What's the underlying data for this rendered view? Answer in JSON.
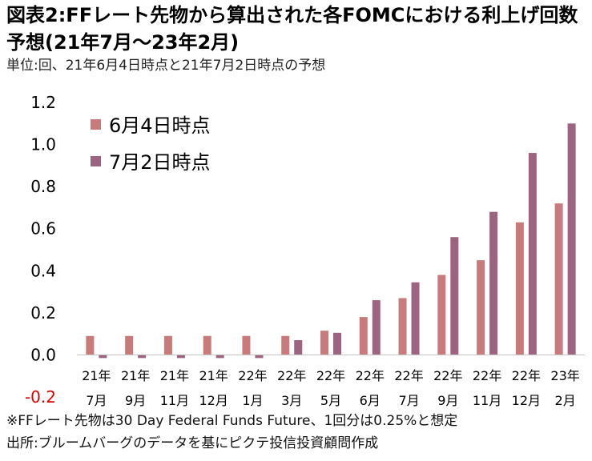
{
  "title": "図表2:FFレート先物から算出された各FOMCにおける利上げ回数予想(21年7月～23年2月)",
  "subtitle": "単位:回、21年6月4日時点と21年7月2日時点の予想",
  "notes": {
    "note": "※FFレート先物は30 Day Federal Funds Future、1回分は0.25%と想定",
    "source": "出所:ブルームバーグのデータを基にピクテ投信投資顧問作成"
  },
  "chart_data": {
    "type": "bar",
    "categories": [
      [
        "21年",
        "7月"
      ],
      [
        "21年",
        "9月"
      ],
      [
        "21年",
        "11月"
      ],
      [
        "21年",
        "12月"
      ],
      [
        "22年",
        "1月"
      ],
      [
        "22年",
        "3月"
      ],
      [
        "22年",
        "5月"
      ],
      [
        "22年",
        "6月"
      ],
      [
        "22年",
        "7月"
      ],
      [
        "22年",
        "9月"
      ],
      [
        "22年",
        "11月"
      ],
      [
        "22年",
        "12月"
      ],
      [
        "23年",
        "2月"
      ]
    ],
    "series": [
      {
        "name": "6月4日時点",
        "color": "#c97b7b",
        "values": [
          0.09,
          0.09,
          0.09,
          0.09,
          0.09,
          0.09,
          0.115,
          0.18,
          0.27,
          0.38,
          0.45,
          0.63,
          0.72
        ]
      },
      {
        "name": "7月2日時点",
        "color": "#9c6480",
        "values": [
          -0.015,
          -0.015,
          -0.015,
          -0.015,
          -0.015,
          0.07,
          0.105,
          0.26,
          0.345,
          0.56,
          0.68,
          0.96,
          1.1
        ]
      }
    ],
    "ylim": [
      -0.2,
      1.2
    ],
    "yticks": [
      "-0.2",
      "0.0",
      "0.2",
      "0.4",
      "0.6",
      "0.8",
      "1.0",
      "1.2"
    ],
    "ytick_values": [
      -0.2,
      0.0,
      0.2,
      0.4,
      0.6,
      0.8,
      1.0,
      1.2
    ],
    "negative_tick_color": "#e00000",
    "grid": false,
    "legend_position": "top-left"
  }
}
